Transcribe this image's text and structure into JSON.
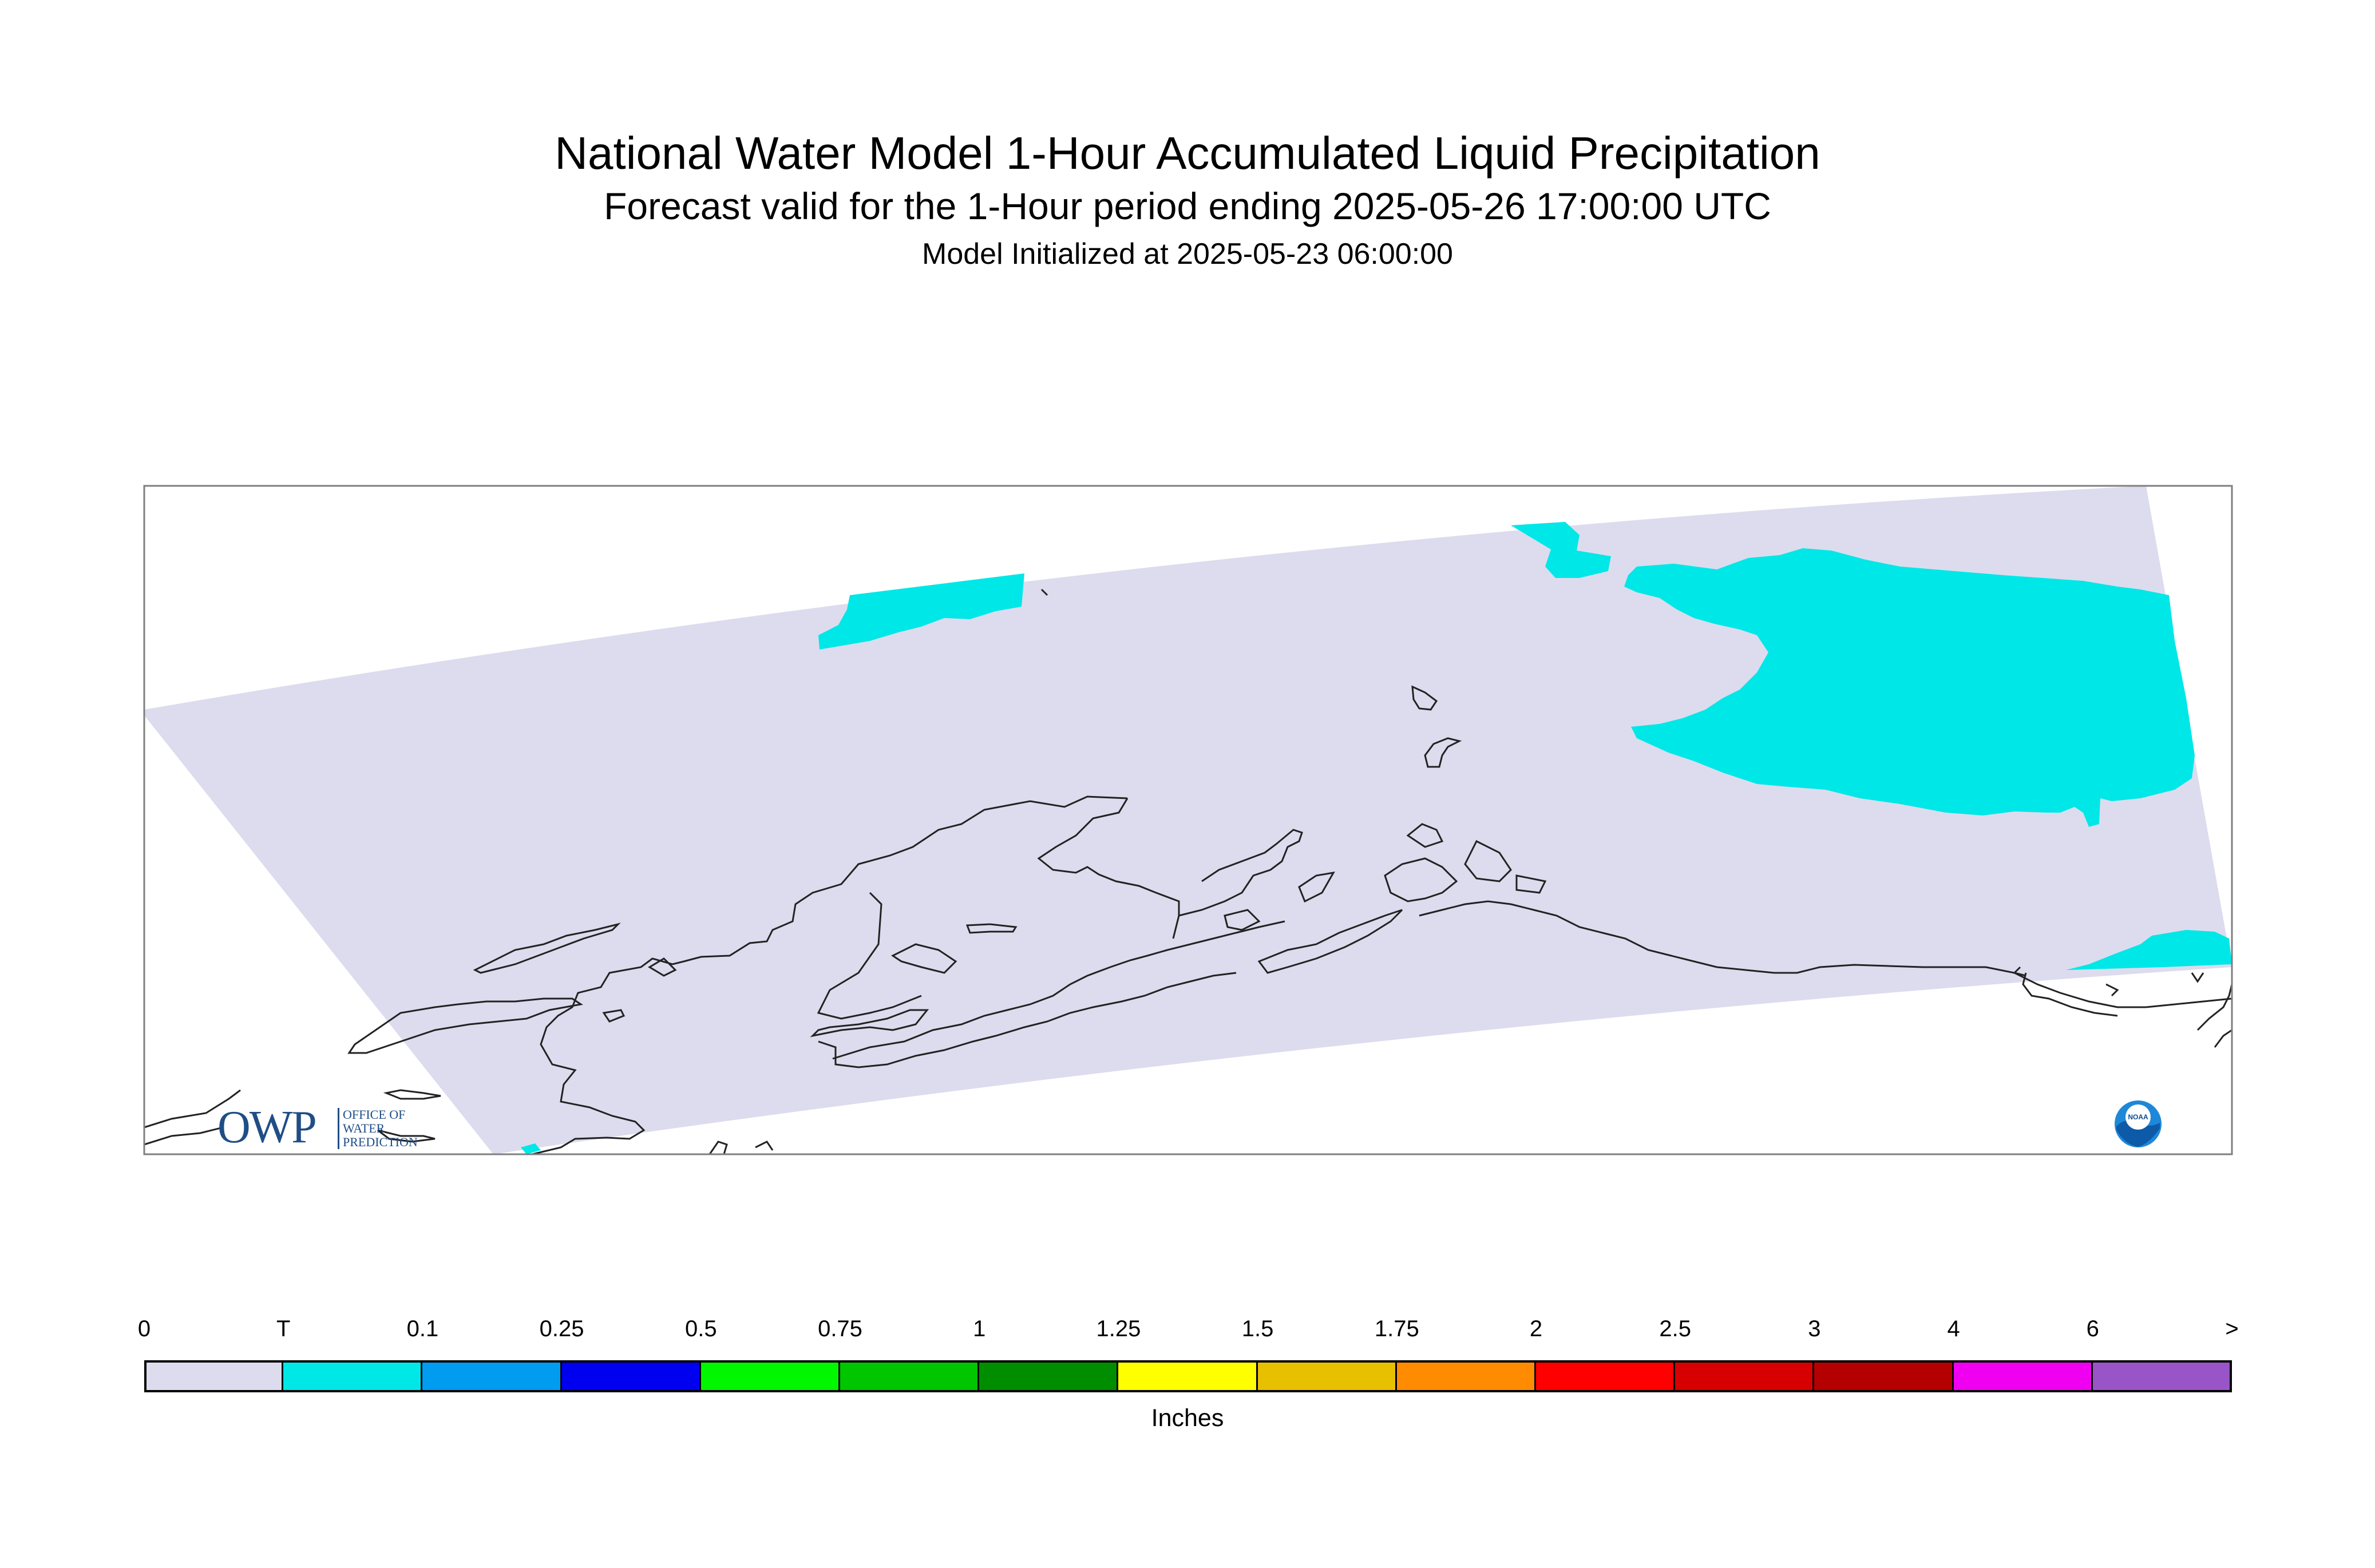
{
  "header": {
    "title": "National Water Model 1-Hour Accumulated Liquid Precipitation",
    "subtitle": "Forecast valid for the 1-Hour period ending 2025-05-26 17:00:00 UTC",
    "initialized": "Model Initialized at 2025-05-23 06:00:00"
  },
  "map": {
    "region": "Alaska",
    "domain_fill_color": "#dcdcee",
    "precip_color": "#00e7e7",
    "coastline_color": "#222222"
  },
  "legend": {
    "units": "Inches",
    "ticks": [
      "0",
      "T",
      "0.1",
      "0.25",
      "0.5",
      "0.75",
      "1",
      "1.25",
      "1.5",
      "1.75",
      "2",
      "2.5",
      "3",
      "4",
      "6",
      ">"
    ],
    "colors": [
      "#dcdcee",
      "#00e7e7",
      "#009cf0",
      "#0000f0",
      "#00f700",
      "#00c600",
      "#008e00",
      "#ffff00",
      "#e7c000",
      "#ff8c00",
      "#ff0000",
      "#d60000",
      "#b40000",
      "#f000f0",
      "#9955c8"
    ]
  },
  "logos": {
    "owp_text": "OWP",
    "owp_sub": [
      "Office of",
      "Water",
      "Prediction"
    ],
    "noaa_text": "NOAA"
  }
}
